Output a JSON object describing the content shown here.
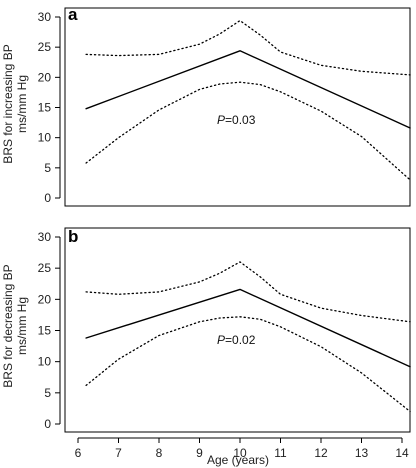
{
  "chart_data": [
    {
      "type": "line",
      "panel_label": "a",
      "ylabel": "BRS for increasing BP",
      "ylabel_units": "ms/mm Hg",
      "xlabel": "",
      "xlim": [
        6,
        14
      ],
      "ylim": [
        0,
        30
      ],
      "yticks": [
        "0",
        "5",
        "10",
        "15",
        "20",
        "25",
        "30"
      ],
      "xticks": [],
      "annotation": {
        "italic": "P",
        "text": "=0.03"
      },
      "series": [
        {
          "style": "solid",
          "x": [
            6.2,
            10,
            14.2
          ],
          "y": [
            14.8,
            24.4,
            11.6
          ]
        },
        {
          "style": "dotted",
          "x": [
            6.2,
            7,
            8,
            9,
            9.5,
            10,
            10.5,
            11,
            12,
            13,
            14.2
          ],
          "y": [
            23.8,
            23.6,
            23.8,
            25.5,
            27.2,
            29.4,
            27.0,
            24.2,
            22.0,
            21.0,
            20.4
          ]
        },
        {
          "style": "dotted",
          "x": [
            6.2,
            7,
            8,
            9,
            9.5,
            10,
            10.5,
            11,
            12,
            13,
            14.2
          ],
          "y": [
            5.8,
            10.0,
            14.6,
            18.0,
            18.9,
            19.2,
            18.8,
            17.6,
            14.4,
            10.2,
            3.0
          ]
        }
      ]
    },
    {
      "type": "line",
      "panel_label": "b",
      "ylabel": "BRS for decreasing BP",
      "ylabel_units": "ms/mm Hg",
      "xlabel": "Age (years)",
      "xlim": [
        6,
        14
      ],
      "ylim": [
        0,
        30
      ],
      "yticks": [
        "0",
        "5",
        "10",
        "15",
        "20",
        "25",
        "30"
      ],
      "xticks": [
        "6",
        "7",
        "8",
        "9",
        "10",
        "11",
        "12",
        "13",
        "14"
      ],
      "annotation": {
        "italic": "P",
        "text": "=0.02"
      },
      "series": [
        {
          "style": "solid",
          "x": [
            6.2,
            10,
            14.2
          ],
          "y": [
            13.8,
            21.6,
            9.2
          ]
        },
        {
          "style": "dotted",
          "x": [
            6.2,
            7,
            8,
            9,
            9.5,
            10,
            10.5,
            11,
            12,
            13,
            14.2
          ],
          "y": [
            21.2,
            20.8,
            21.2,
            22.8,
            24.2,
            26.0,
            23.6,
            20.8,
            18.6,
            17.4,
            16.4
          ]
        },
        {
          "style": "dotted",
          "x": [
            6.2,
            7,
            8,
            9,
            9.5,
            10,
            10.5,
            11,
            12,
            13,
            14.2
          ],
          "y": [
            6.2,
            10.4,
            14.2,
            16.4,
            17.0,
            17.2,
            16.8,
            15.6,
            12.4,
            8.2,
            2.0
          ]
        }
      ]
    }
  ]
}
